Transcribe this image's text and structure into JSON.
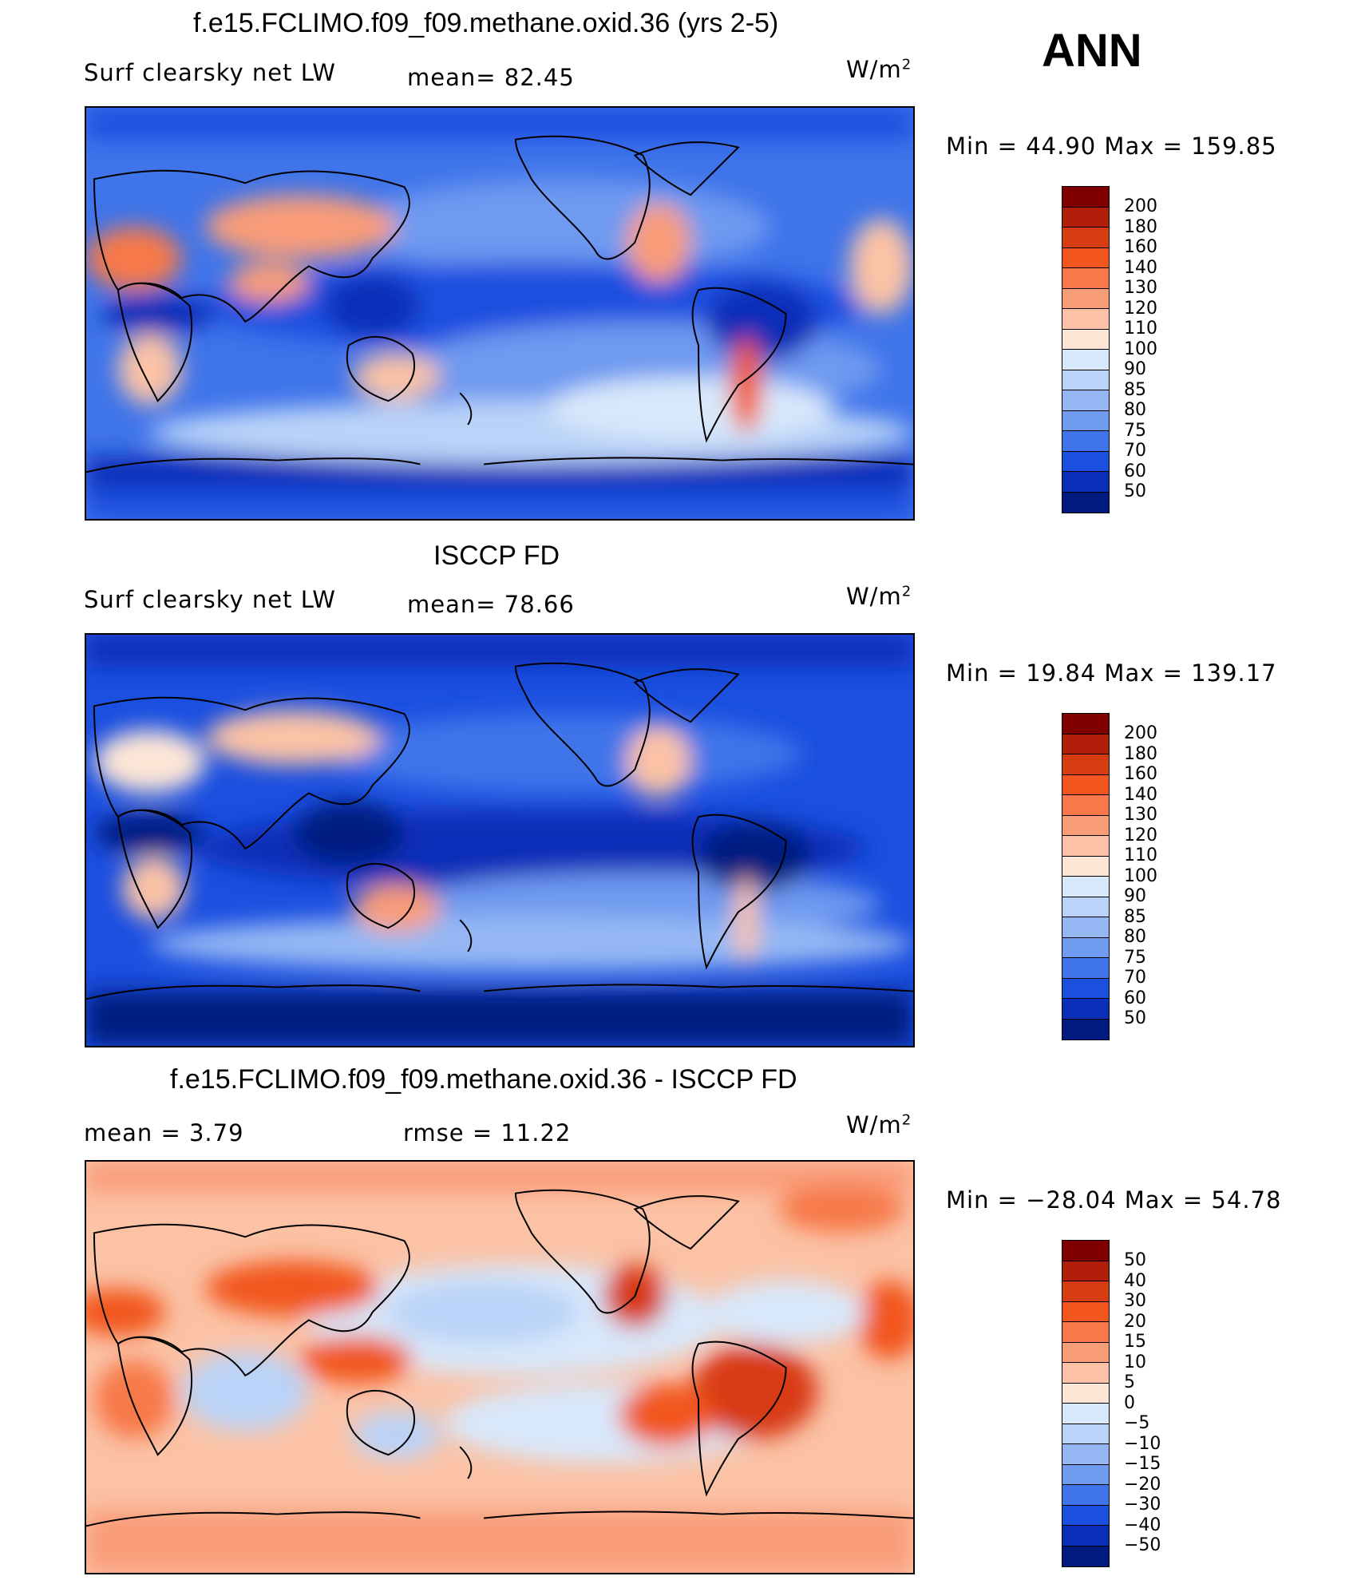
{
  "season": "ANN",
  "panels": [
    {
      "title": "f.e15.FCLIMO.f09_f09.methane.oxid.36 (yrs 2-5)",
      "left_label": "Surf  clearsky  net  LW",
      "mid_label": "mean=   82.45",
      "units": "W/m",
      "units_sup": "2",
      "minmax": "Min  =    44.90  Max  =  159.85",
      "colorbar_levels": [
        "200",
        "180",
        "160",
        "140",
        "130",
        "120",
        "110",
        "100",
        "90",
        "85",
        "80",
        "75",
        "70",
        "60",
        "50"
      ],
      "colors": [
        "#800000",
        "#b01e0a",
        "#d83a12",
        "#f2561e",
        "#f7794a",
        "#f99c78",
        "#fbc2a6",
        "#fde6d6",
        "#d8e8fb",
        "#bad3f8",
        "#95b8f4",
        "#6e9af0",
        "#3f74ea",
        "#1b4fe0",
        "#0a2eb8",
        "#001a80"
      ]
    },
    {
      "title": "ISCCP FD",
      "left_label": "Surf  clearsky  net  LW",
      "mid_label": "mean=   78.66",
      "units": "W/m",
      "units_sup": "2",
      "minmax": "Min  =    19.84  Max  =  139.17",
      "colorbar_levels": [
        "200",
        "180",
        "160",
        "140",
        "130",
        "120",
        "110",
        "100",
        "90",
        "85",
        "80",
        "75",
        "70",
        "60",
        "50"
      ],
      "colors": [
        "#800000",
        "#b01e0a",
        "#d83a12",
        "#f2561e",
        "#f7794a",
        "#f99c78",
        "#fbc2a6",
        "#fde6d6",
        "#d8e8fb",
        "#bad3f8",
        "#95b8f4",
        "#6e9af0",
        "#3f74ea",
        "#1b4fe0",
        "#0a2eb8",
        "#001a80"
      ]
    },
    {
      "title": "f.e15.FCLIMO.f09_f09.methane.oxid.36 - ISCCP FD",
      "left_label": "mean  =     3.79",
      "mid_label": "rmse  =    11.22",
      "units": "W/m",
      "units_sup": "2",
      "minmax": "Min  = −28.04  Max  =    54.78",
      "colorbar_levels": [
        "50",
        "40",
        "30",
        "20",
        "15",
        "10",
        "5",
        "0",
        "−5",
        "−10",
        "−15",
        "−20",
        "−30",
        "−40",
        "−50"
      ],
      "colors": [
        "#800000",
        "#b01e0a",
        "#d83a12",
        "#f2561e",
        "#f7794a",
        "#f99c78",
        "#fbc2a6",
        "#fde6d6",
        "#d8e8fb",
        "#bad3f8",
        "#95b8f4",
        "#6e9af0",
        "#3f74ea",
        "#1b4fe0",
        "#0a2eb8",
        "#001a80"
      ]
    }
  ]
}
